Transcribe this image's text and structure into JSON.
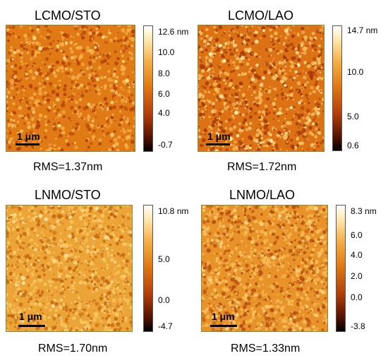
{
  "panels": [
    {
      "title": "LCMO/STO",
      "rms": "RMS=1.37nm",
      "scale_label": "1 μm",
      "colorbar": {
        "top_label": "12.6 nm",
        "ticks": [
          "10.0",
          "8.0",
          "6.0",
          "4.0",
          "-0.7"
        ]
      },
      "texture": {
        "base": "#e07a14",
        "light": "#f5b04a",
        "dark": "#b4400a",
        "highlight": "#ffe08a",
        "density": 900
      }
    },
    {
      "title": "LCMO/LAO",
      "rms": "RMS=1.72nm",
      "scale_label": "1 μm",
      "colorbar": {
        "top_label": "14.7 nm",
        "ticks": [
          "10.0",
          "5.0",
          "0.6"
        ]
      },
      "texture": {
        "base": "#dc7214",
        "light": "#f7c060",
        "dark": "#a63a08",
        "highlight": "#fff2b0",
        "density": 1100
      }
    },
    {
      "title": "LNMO/STO",
      "rms": "RMS=1.70nm",
      "scale_label": "1 μm",
      "colorbar": {
        "top_label": "10.8 nm",
        "ticks": [
          "5.0",
          "0.0",
          "-4.7"
        ]
      },
      "texture": {
        "base": "#eda437",
        "light": "#f7c862",
        "dark": "#c66a12",
        "highlight": "#fde29a",
        "density": 1200
      }
    },
    {
      "title": "LNMO/LAO",
      "rms": "RMS=1.33nm",
      "scale_label": "1 μm",
      "colorbar": {
        "top_label": "8.3 nm",
        "ticks": [
          "6.0",
          "4.0",
          "2.0",
          "0.0",
          "-3.8"
        ]
      },
      "texture": {
        "base": "#e8932a",
        "light": "#f6bd55",
        "dark": "#b9500e",
        "highlight": "#fbd985",
        "density": 1300
      }
    }
  ]
}
